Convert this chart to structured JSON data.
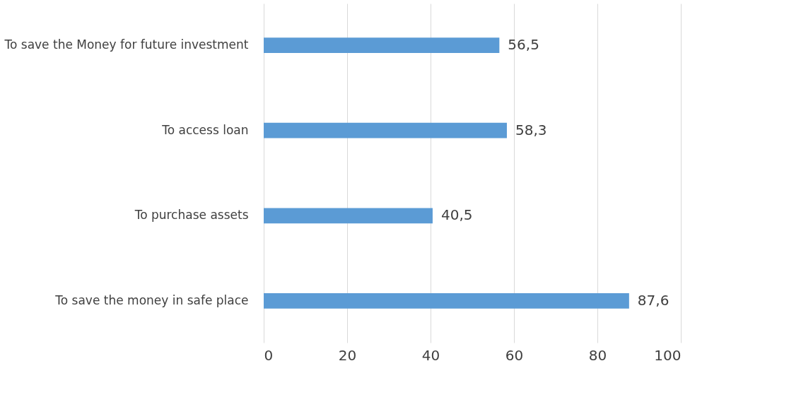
{
  "chart_data": {
    "type": "bar",
    "orientation": "horizontal",
    "categories": [
      "To save the Money for future investment",
      "To access loan",
      "To purchase assets",
      "To save the money in safe place"
    ],
    "values": [
      56.5,
      58.3,
      40.5,
      87.6
    ],
    "value_labels": [
      "56,5",
      "58,3",
      "40,5",
      "87,6"
    ],
    "color": "#5b9bd5",
    "xlim": [
      0,
      100
    ],
    "xticks": [
      0,
      20,
      40,
      60,
      80,
      100
    ],
    "grid": "x"
  }
}
